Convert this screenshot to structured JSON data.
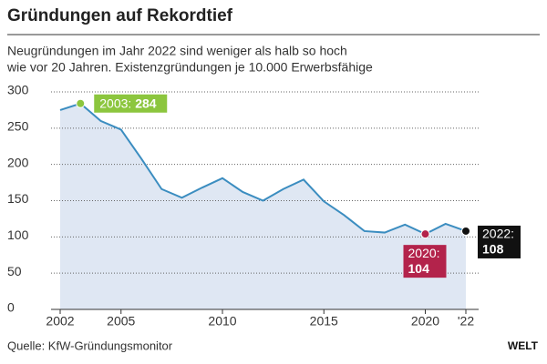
{
  "chart_data": {
    "type": "area",
    "title": "Gründungen auf Rekordtief",
    "subtitle": [
      "Neugründungen im Jahr 2022 sind weniger als halb so hoch",
      "wie vor 20 Jahren. Existenzgründungen je 10.000 Erwerbsfähige"
    ],
    "x": [
      2002,
      2003,
      2004,
      2005,
      2006,
      2007,
      2008,
      2009,
      2010,
      2011,
      2012,
      2013,
      2014,
      2015,
      2016,
      2017,
      2018,
      2019,
      2020,
      2021,
      2022
    ],
    "values": [
      275,
      284,
      260,
      248,
      208,
      166,
      154,
      168,
      181,
      162,
      150,
      166,
      179,
      149,
      130,
      108,
      106,
      117,
      104,
      118,
      108
    ],
    "color": "#3b8dc0",
    "fill": "#dfe7f3",
    "xlim": [
      2002,
      2022
    ],
    "xticks": [
      2002,
      2005,
      2010,
      2015,
      2020,
      {
        "value": 2022,
        "label": "'22"
      }
    ],
    "ylim": [
      0,
      300
    ],
    "yticks": [
      0,
      50,
      100,
      150,
      200,
      250,
      300
    ],
    "grid": true,
    "highlights": [
      {
        "x": 2003,
        "label": "2003:",
        "color": "#8cc63e"
      },
      {
        "x": 2020,
        "label": "2020:",
        "color": "#b3234b"
      },
      {
        "x": 2022,
        "label": "2022:",
        "color": "#111111"
      }
    ],
    "source": "Quelle: KfW-Gründungsmonitor",
    "brand": "WELT"
  }
}
